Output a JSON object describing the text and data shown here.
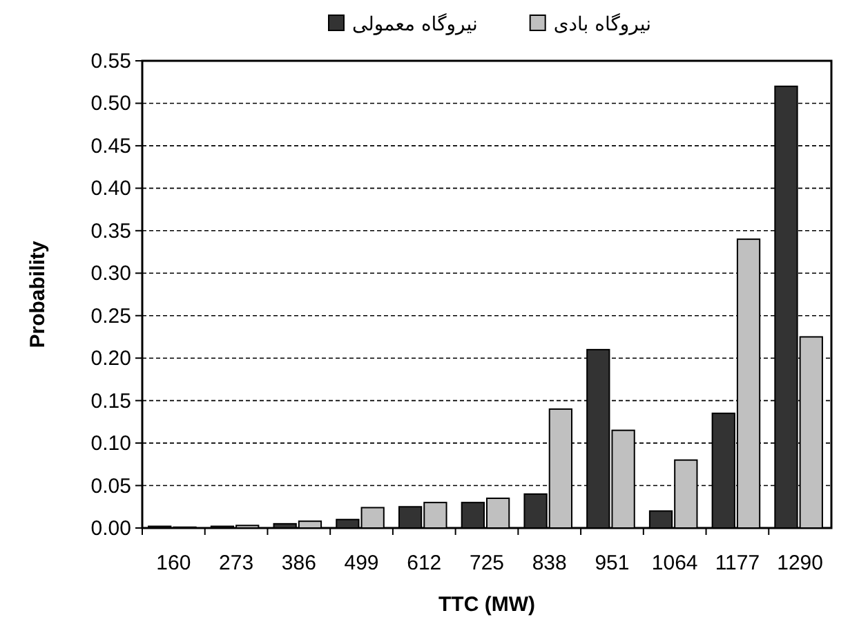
{
  "chart_data": {
    "type": "bar",
    "xlabel": "TTC (MW)",
    "ylabel": "Probability",
    "categories": [
      "160",
      "273",
      "386",
      "499",
      "612",
      "725",
      "838",
      "951",
      "1064",
      "1177",
      "1290"
    ],
    "series": [
      {
        "name": "نیروگاه معمولی",
        "color": "#333333",
        "values": [
          0.002,
          0.002,
          0.005,
          0.01,
          0.025,
          0.03,
          0.04,
          0.21,
          0.02,
          0.135,
          0.52
        ]
      },
      {
        "name": "نیروگاه بادی",
        "color": "#c0c0c0",
        "values": [
          0.001,
          0.003,
          0.008,
          0.024,
          0.03,
          0.035,
          0.14,
          0.115,
          0.08,
          0.34,
          0.225
        ]
      }
    ],
    "ylim": [
      0,
      0.55
    ],
    "yticks": [
      {
        "value": 0,
        "label": "0.00"
      },
      {
        "value": 0.05,
        "label": "0.05"
      },
      {
        "value": 0.1,
        "label": "0.10"
      },
      {
        "value": 0.15,
        "label": "0.15"
      },
      {
        "value": 0.2,
        "label": "0.20"
      },
      {
        "value": 0.25,
        "label": "0.25"
      },
      {
        "value": 0.3,
        "label": "0.30"
      },
      {
        "value": 0.35,
        "label": "0.35"
      },
      {
        "value": 0.4,
        "label": "0.40"
      },
      {
        "value": 0.45,
        "label": "0.45"
      },
      {
        "value": 0.5,
        "label": "0.50"
      },
      {
        "value": 0.55,
        "label": "0.55"
      }
    ],
    "grid": "y",
    "legend": "top"
  }
}
